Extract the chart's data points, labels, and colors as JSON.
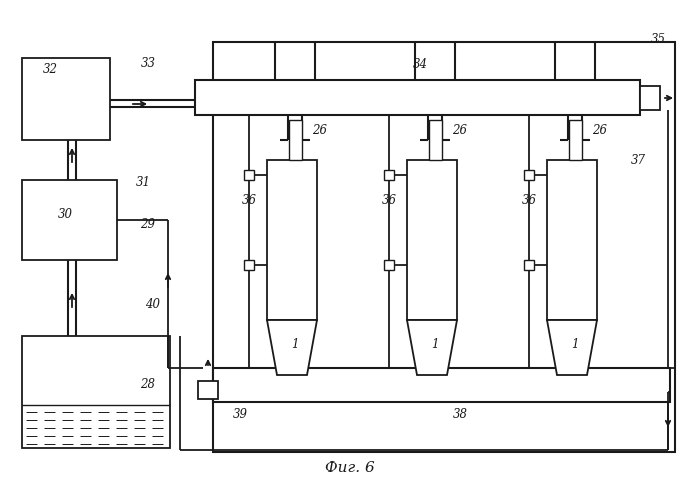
{
  "fig_label": "Фиг. 6",
  "bg_color": "#ffffff",
  "line_color": "#1a1a1a",
  "lw": 1.3,
  "figsize": [
    7.0,
    4.9
  ],
  "dpi": 100
}
